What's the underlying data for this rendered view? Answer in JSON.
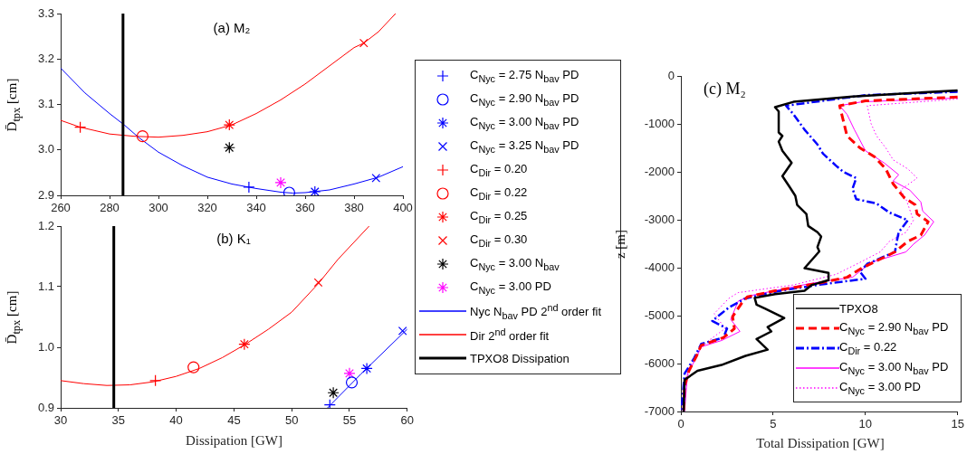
{
  "chart_data": [
    {
      "type": "scatter",
      "title": "(a) M₂",
      "ylabel": "D̄$_{tpx}$ [cm]",
      "xlim": [
        260,
        400
      ],
      "xticks": [
        260,
        280,
        300,
        320,
        340,
        360,
        380,
        400
      ],
      "ylim": [
        2.9,
        3.3
      ],
      "yticks": [
        2.9,
        {
          "value": 3,
          "label": "3.0"
        },
        3.1,
        3.2,
        3.3
      ],
      "legend": "right",
      "series": [
        {
          "name": "C$_{Nyc}$ = 2.75 N$_{bav}$ PD",
          "color": "#0000ff",
          "marker": "plus",
          "x": [
            337
          ],
          "values": [
            2.918
          ]
        },
        {
          "name": "C$_{Nyc}$ = 2.90 N$_{bav}$ PD",
          "color": "#0000ff",
          "marker": "circle",
          "x": [
            353.5
          ],
          "values": [
            2.906
          ]
        },
        {
          "name": "C$_{Nyc}$ = 3.00 N$_{bav}$ PD",
          "color": "#0000ff",
          "marker": "cross",
          "x": [
            364
          ],
          "values": [
            2.908
          ]
        },
        {
          "name": "C$_{Nyc}$ = 3.25 N$_{bav}$ PD",
          "color": "#0000ff",
          "marker": "x",
          "x": [
            389
          ],
          "values": [
            2.938
          ]
        },
        {
          "name": "C$_{Dir}$ = 0.20",
          "color": "#ff0000",
          "marker": "plus",
          "x": [
            268
          ],
          "values": [
            3.05
          ]
        },
        {
          "name": "C$_{Dir}$ = 0.22",
          "color": "#ff0000",
          "marker": "circle",
          "x": [
            293.5
          ],
          "values": [
            3.03
          ]
        },
        {
          "name": "C$_{Dir}$ = 0.25",
          "color": "#ff0000",
          "marker": "cross",
          "x": [
            329
          ],
          "values": [
            3.055
          ]
        },
        {
          "name": "C$_{Dir}$ = 0.30",
          "color": "#ff0000",
          "marker": "x",
          "x": [
            384
          ],
          "values": [
            3.235
          ]
        },
        {
          "name": "C$_{Nyc}$ = 3.00 N$_{bav}$",
          "color": "#000000",
          "marker": "cross",
          "x": [
            329
          ],
          "values": [
            3.005
          ]
        },
        {
          "name": "C$_{Nyc}$ = 3.00 PD",
          "color": "#ff00ff",
          "marker": "cross",
          "x": [
            350
          ],
          "values": [
            2.928
          ]
        },
        {
          "name": "Nyc N$_{bav}$ PD 2$^{nd}$ order fit",
          "type": "line",
          "color": "#0000ff",
          "x": [
            260,
            270,
            280,
            286,
            292,
            300,
            310,
            320,
            330,
            340,
            350,
            355,
            360,
            370,
            380,
            390,
            400
          ],
          "values": [
            3.18,
            3.125,
            3.08,
            3.055,
            3.027,
            2.995,
            2.965,
            2.94,
            2.925,
            2.915,
            2.907,
            2.905,
            2.906,
            2.912,
            2.925,
            2.94,
            2.963
          ]
        },
        {
          "name": "Dir 2$^{nd}$ order fit",
          "type": "line",
          "color": "#ff0000",
          "x": [
            260,
            268,
            280,
            290,
            300,
            310,
            320,
            330,
            340,
            350,
            360,
            370,
            380,
            384,
            390,
            397
          ],
          "values": [
            3.065,
            3.05,
            3.035,
            3.03,
            3.028,
            3.032,
            3.04,
            3.055,
            3.08,
            3.11,
            3.145,
            3.185,
            3.225,
            3.235,
            3.26,
            3.3
          ]
        }
      ],
      "ref_lines": [
        {
          "axis": "x",
          "value": 285.5,
          "label": "TPXO8 Dissipation",
          "color": "#000000"
        }
      ]
    },
    {
      "type": "scatter",
      "title": "(b) K₁",
      "xlabel": "Dissipation [GW]",
      "ylabel": "D̄$_{tpx}$ [cm]",
      "xlim": [
        30,
        60
      ],
      "xticks": [
        30,
        35,
        40,
        45,
        50,
        55,
        60
      ],
      "ylim": [
        0.9,
        1.2
      ],
      "yticks": [
        0.9,
        {
          "value": 1,
          "label": "1.0"
        },
        1.1,
        1.2
      ],
      "series": [
        {
          "color": "#0000ff",
          "marker": "plus",
          "x": [
            53.3
          ],
          "values": [
            0.905
          ]
        },
        {
          "color": "#0000ff",
          "marker": "circle",
          "x": [
            55.2
          ],
          "values": [
            0.942
          ]
        },
        {
          "color": "#0000ff",
          "marker": "cross",
          "x": [
            56.5
          ],
          "values": [
            0.965
          ]
        },
        {
          "color": "#0000ff",
          "marker": "x",
          "x": [
            59.6
          ],
          "values": [
            1.027
          ]
        },
        {
          "color": "#ff0000",
          "marker": "plus",
          "x": [
            38.2
          ],
          "values": [
            0.945
          ]
        },
        {
          "color": "#ff0000",
          "marker": "circle",
          "x": [
            41.5
          ],
          "values": [
            0.967
          ]
        },
        {
          "color": "#ff0000",
          "marker": "cross",
          "x": [
            45.9
          ],
          "values": [
            1.005
          ]
        },
        {
          "color": "#ff0000",
          "marker": "x",
          "x": [
            52.3
          ],
          "values": [
            1.107
          ]
        },
        {
          "color": "#000000",
          "marker": "cross",
          "x": [
            53.6
          ],
          "values": [
            0.925
          ]
        },
        {
          "color": "#ff00ff",
          "marker": "cross",
          "x": [
            55
          ],
          "values": [
            0.957
          ]
        },
        {
          "type": "line",
          "color": "#0000ff",
          "x": [
            53.1,
            56,
            60
          ],
          "values": [
            0.9,
            0.956,
            1.03
          ]
        },
        {
          "type": "line",
          "color": "#ff0000",
          "x": [
            30,
            32,
            34,
            36,
            38,
            40,
            42,
            44,
            46,
            48,
            50,
            52.3,
            54,
            56.7
          ],
          "values": [
            0.945,
            0.94,
            0.937,
            0.938,
            0.943,
            0.952,
            0.965,
            0.983,
            1.005,
            1.03,
            1.058,
            1.105,
            1.145,
            1.2
          ]
        }
      ],
      "ref_lines": [
        {
          "axis": "x",
          "value": 34.6,
          "color": "#000000"
        }
      ]
    },
    {
      "type": "line",
      "title": "(c) M₂",
      "xlabel": "Total Dissipation [GW]",
      "ylabel": "z [m]",
      "xlim": [
        0,
        15
      ],
      "xticks": [
        0,
        5,
        10,
        15
      ],
      "ylim": [
        -7000,
        0
      ],
      "yticks": [
        -7000,
        -6000,
        -5000,
        -4000,
        -3000,
        -2000,
        -1000,
        0
      ],
      "legend": "bottom right",
      "series": [
        {
          "name": "TPXO8",
          "color": "#000000",
          "line_style": "solid",
          "x": [
            15,
            9.3,
            6.1,
            5.1,
            5.3,
            5.3,
            5.5,
            5.3,
            5.5,
            6,
            5.5,
            5.9,
            6.2,
            6.3,
            6.8,
            6.9,
            7.4,
            7.6,
            7.4,
            7.5,
            6.7,
            8,
            8,
            7.1,
            6.7,
            5.1,
            4,
            4.1,
            4.6,
            5.6,
            4.7,
            4.9,
            4.1,
            4.7,
            3.5,
            2.2,
            0.9,
            0.2,
            0.15
          ],
          "values": [
            -300,
            -430,
            -540,
            -650,
            -740,
            -1180,
            -1250,
            -1370,
            -1560,
            -1810,
            -2090,
            -2320,
            -2500,
            -2690,
            -2880,
            -3130,
            -3260,
            -3350,
            -3570,
            -3660,
            -4010,
            -4110,
            -4260,
            -4360,
            -4480,
            -4550,
            -4630,
            -4770,
            -4860,
            -5050,
            -5240,
            -5330,
            -5490,
            -5710,
            -5840,
            -6030,
            -6150,
            -6340,
            -7000
          ]
        },
        {
          "name": "C$_{Nyc}$ = 2.90 N$_{bav}$ PD",
          "color": "#ff0000",
          "line_style": "dashed",
          "x": [
            15,
            10,
            8.6,
            8.8,
            9,
            9.7,
            10.5,
            11.1,
            11.5,
            12.1,
            12.7,
            12.8,
            13.4,
            13,
            12.3,
            11.6,
            9.8,
            9,
            7.4,
            5.1,
            3.6,
            3.3,
            2.8,
            2.9,
            2.3,
            1.1,
            0.85,
            0.44,
            0.2,
            0.15
          ],
          "values": [
            -440,
            -520,
            -620,
            -930,
            -1250,
            -1500,
            -1690,
            -1940,
            -2250,
            -2540,
            -2690,
            -2880,
            -3040,
            -3320,
            -3450,
            -3670,
            -4010,
            -4200,
            -4330,
            -4480,
            -4610,
            -4740,
            -5020,
            -5270,
            -5460,
            -5620,
            -5840,
            -6150,
            -6470,
            -7000
          ]
        },
        {
          "name": "C$_{Dir}$ = 0.22",
          "color": "#0000ff",
          "line_style": "dashdot",
          "x": [
            15,
            10,
            5.7,
            6.1,
            6.7,
            7.4,
            7.7,
            8.4,
            8.8,
            9.5,
            9.3,
            9.5,
            10.6,
            11.3,
            12.3,
            11.8,
            11.7,
            11.6,
            10.1,
            9.7,
            10,
            7.4,
            5.4,
            3.5,
            2.6,
            1.7,
            2.5,
            2.3,
            1.1,
            0.7,
            0.2,
            0.03
          ],
          "values": [
            -330,
            -400,
            -620,
            -800,
            -1120,
            -1430,
            -1620,
            -1870,
            -2000,
            -2130,
            -2350,
            -2570,
            -2660,
            -2850,
            -3010,
            -3260,
            -3450,
            -3670,
            -3920,
            -4080,
            -4230,
            -4360,
            -4480,
            -4640,
            -4830,
            -5110,
            -5270,
            -5460,
            -5590,
            -5900,
            -6210,
            -7000
          ]
        },
        {
          "name": "C$_{Nyc}$ = 3.00 N$_{bav}$ PD",
          "color": "#ff00ff",
          "line_style": "solid",
          "x": [
            15,
            9.8,
            8.6,
            9,
            9.4,
            10,
            11,
            11.8,
            11.5,
            12.4,
            13,
            13.1,
            13.7,
            13.2,
            12.6,
            12.2,
            10.3,
            9.3,
            7,
            3.8,
            3.1,
            2.7,
            3.2,
            2.2,
            1.1,
            0.85,
            0.36,
            0.2
          ],
          "values": [
            -460,
            -540,
            -620,
            -800,
            -1120,
            -1560,
            -1810,
            -2060,
            -2190,
            -2380,
            -2630,
            -2820,
            -3040,
            -3320,
            -3510,
            -3670,
            -3890,
            -4200,
            -4330,
            -4580,
            -4700,
            -5080,
            -5330,
            -5520,
            -5650,
            -5870,
            -6210,
            -7000
          ]
        },
        {
          "name": "C$_{Nyc}$ = 3.00 PD",
          "color": "#ff00ff",
          "line_style": "dotted",
          "x": [
            15,
            10.1,
            10.3,
            10.6,
            11.1,
            11.5,
            12.3,
            12.8,
            11.9,
            12.2,
            12.6,
            12.2,
            11.3,
            10.8,
            9.7,
            8.4,
            6.1,
            3.1,
            2.6,
            1.8,
            2.4,
            1.5,
            0.9,
            0.44,
            0.1
          ],
          "values": [
            -480,
            -620,
            -990,
            -1250,
            -1500,
            -1750,
            -1940,
            -2130,
            -2380,
            -2570,
            -3010,
            -3260,
            -3450,
            -3670,
            -3890,
            -4140,
            -4360,
            -4520,
            -4640,
            -4960,
            -5270,
            -5520,
            -5770,
            -6090,
            -7000
          ]
        }
      ]
    }
  ]
}
